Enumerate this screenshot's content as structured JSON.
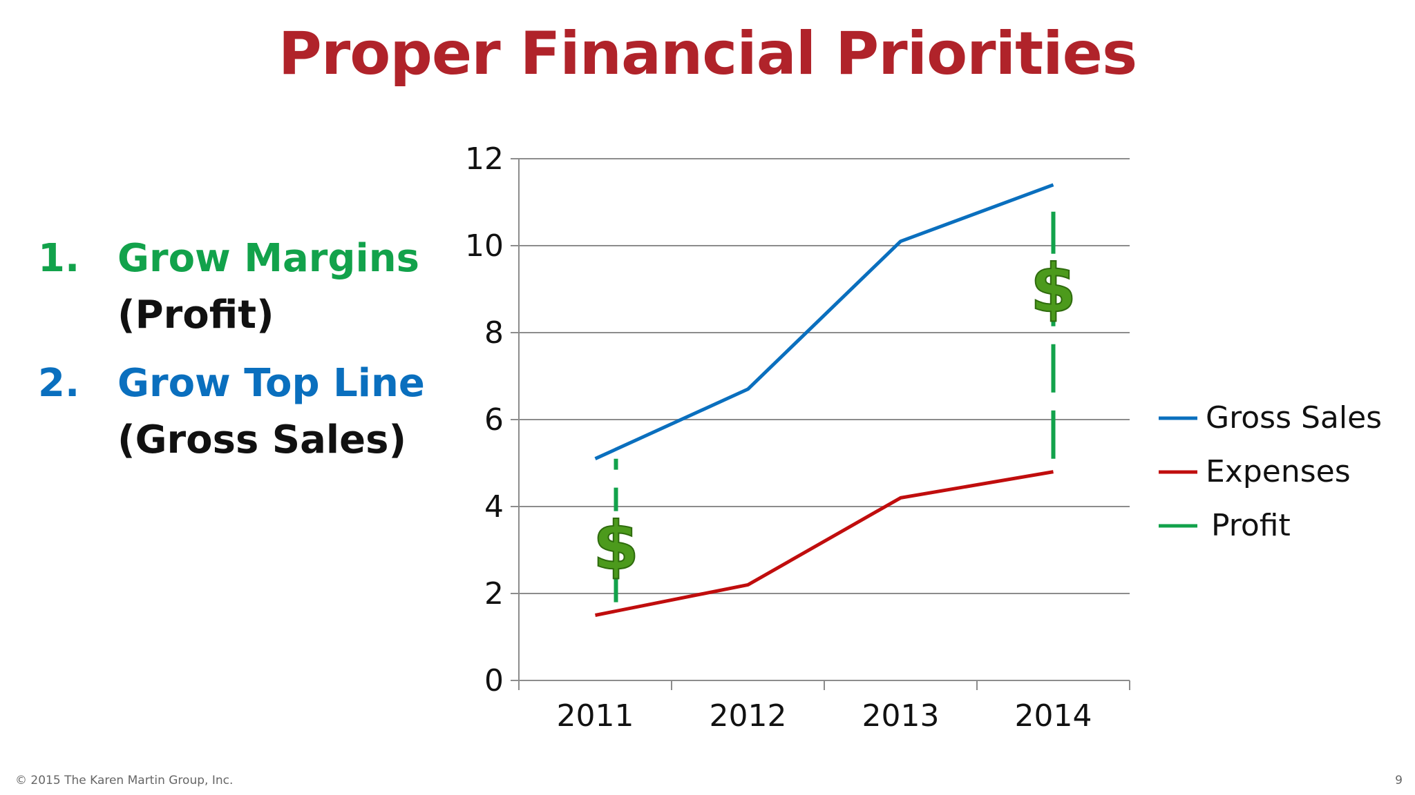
{
  "slide": {
    "title": "Proper Financial Priorities",
    "footer": "© 2015 The Karen Martin Group, Inc.",
    "page_number": "9"
  },
  "priorities": [
    {
      "number": "1.",
      "label": "Grow Margins",
      "sub": "(Profit)",
      "color": "#12a24b"
    },
    {
      "number": "2.",
      "label": "Grow Top Line",
      "sub": "(Gross Sales)",
      "color": "#0a6fbe"
    }
  ],
  "chart_data": {
    "type": "line",
    "x": [
      "2011",
      "2012",
      "2013",
      "2014"
    ],
    "ylim": [
      0,
      12
    ],
    "y_ticks": [
      0,
      2,
      4,
      6,
      8,
      10,
      12
    ],
    "grid": true,
    "legend_position": "right",
    "series": [
      {
        "name": "Gross Sales",
        "values": [
          5.1,
          6.7,
          10.1,
          11.4
        ],
        "color": "#0a6fbe"
      },
      {
        "name": "Expenses",
        "values": [
          1.5,
          2.2,
          4.2,
          4.8
        ],
        "color": "#c00d0d"
      }
    ],
    "profit_indicator": {
      "name": "Profit",
      "color": "#12a24b",
      "icon": "dollar-sign-icon",
      "markers": [
        {
          "x": "2011",
          "from": 1.8,
          "to": 5.1
        },
        {
          "x": "2014",
          "from": 5.1,
          "to": 11.1
        }
      ]
    }
  }
}
